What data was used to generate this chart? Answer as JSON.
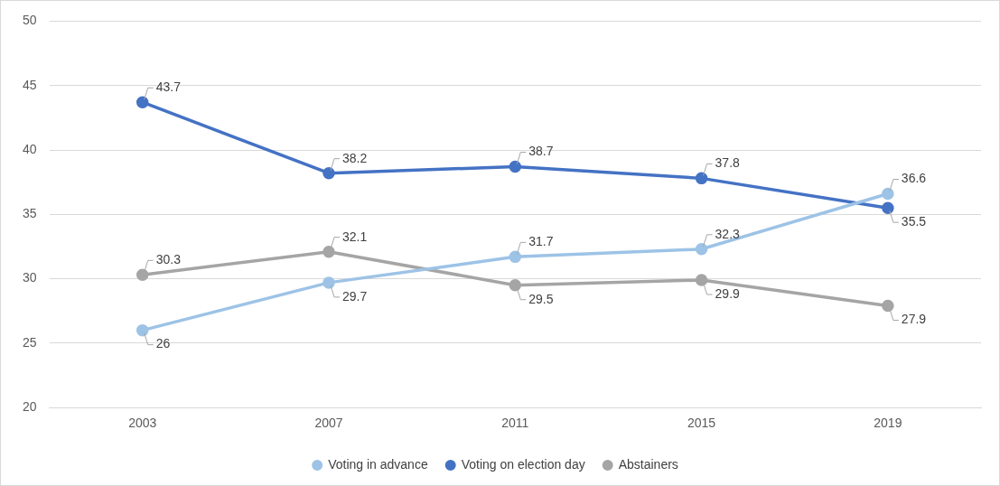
{
  "chart_data": {
    "type": "line",
    "categories": [
      "2003",
      "2007",
      "2011",
      "2015",
      "2019"
    ],
    "series": [
      {
        "name": "Voting in advance",
        "color": "#9dc3e6",
        "values": [
          26,
          29.7,
          31.7,
          32.3,
          36.6
        ]
      },
      {
        "name": "Voting on election day",
        "color": "#4472c4",
        "values": [
          43.7,
          38.2,
          38.7,
          37.8,
          35.5
        ]
      },
      {
        "name": "Abstainers",
        "color": "#a5a5a5",
        "values": [
          30.3,
          32.1,
          29.5,
          29.9,
          27.9
        ]
      }
    ],
    "ylim": [
      20,
      50
    ],
    "yticks": [
      20,
      25,
      30,
      35,
      40,
      45,
      50
    ],
    "grid": "y",
    "legend": "bottom",
    "marker": "circle",
    "line_style": "solid",
    "data_labels": true
  }
}
